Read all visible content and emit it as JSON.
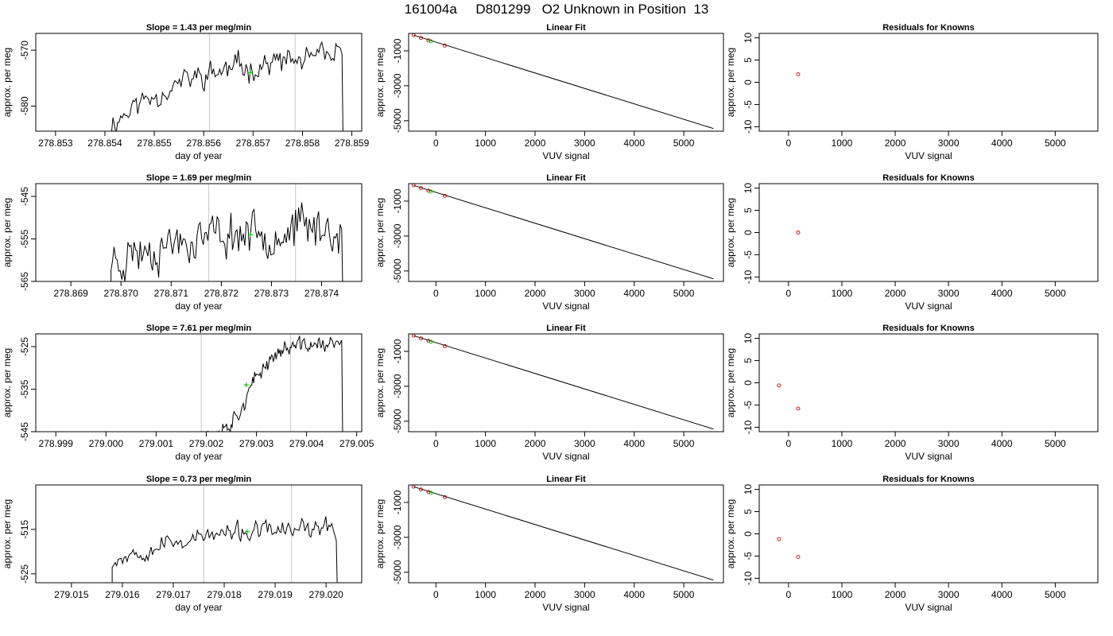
{
  "page": {
    "title": "161004a     D801299   O2 Unknown in Position  13"
  },
  "style": {
    "trace_color": "#000000",
    "marker_color": "#00cc00",
    "vline_color": "#c8c8c8",
    "point_color": "#cc0000"
  },
  "chart_data": [
    {
      "type": "line",
      "row": 0,
      "panel": "time-series",
      "title": "Slope =  1.43  per meg/min",
      "xlabel": "day of year",
      "ylabel": "approx. per meg",
      "xlim": [
        278.8526,
        278.8592
      ],
      "ylim": [
        -584.5,
        -567.0
      ],
      "xticks": [
        "278.853",
        "278.854",
        "278.855",
        "278.856",
        "278.857",
        "278.858",
        "278.859"
      ],
      "yticks": [
        "-570",
        "-580"
      ],
      "vlines": [
        278.85612,
        278.85785
      ],
      "marker": {
        "x": 278.85694,
        "y": -574.0
      },
      "trace": {
        "x_start": 278.8541,
        "x_end": 278.8588,
        "y_start": -583.5,
        "y_end": -570.8,
        "noise": 2.2,
        "end_y": -585.0,
        "seed": 11
      }
    },
    {
      "type": "line",
      "row": 0,
      "panel": "linear-fit",
      "title": "Linear Fit",
      "xlabel": "VUV signal",
      "ylabel": "approx. per meg",
      "xlim": [
        -550,
        5800
      ],
      "ylim": [
        -5600,
        0
      ],
      "xticks": [
        "0",
        "1000",
        "2000",
        "3000",
        "4000",
        "5000"
      ],
      "yticks": [
        "-1000",
        "-3000",
        "-5000"
      ],
      "line": {
        "x": [
          -450,
          5600
        ],
        "y": [
          -100,
          -5450
        ]
      },
      "known_points": [
        {
          "x": -450,
          "y": -100
        },
        {
          "x": -300,
          "y": -260
        },
        {
          "x": -150,
          "y": -400
        },
        {
          "x": 180,
          "y": -700
        }
      ],
      "unknown_points": [
        {
          "x": -100,
          "y": -450
        }
      ]
    },
    {
      "type": "scatter",
      "row": 0,
      "panel": "residuals",
      "title": "Residuals for Knowns",
      "xlabel": "VUV signal",
      "ylabel": "approx. per meg",
      "xlim": [
        -550,
        5800
      ],
      "ylim": [
        -11,
        11
      ],
      "xticks": [
        "0",
        "1000",
        "2000",
        "3000",
        "4000",
        "5000"
      ],
      "yticks": [
        "-10",
        "-5",
        "0",
        "5",
        "10"
      ],
      "points": [
        {
          "x": 180,
          "y": 1.8
        }
      ]
    },
    {
      "type": "line",
      "row": 1,
      "panel": "time-series",
      "title": "Slope =  1.69  per meg/min",
      "xlabel": "day of year",
      "ylabel": "approx. per meg",
      "xlim": [
        278.8683,
        278.8748
      ],
      "ylim": [
        -565.0,
        -542.0
      ],
      "xticks": [
        "278.869",
        "278.870",
        "278.871",
        "278.872",
        "278.873",
        "278.874"
      ],
      "yticks": [
        "-545",
        "-555",
        "-565"
      ],
      "vlines": [
        278.87175,
        278.87348
      ],
      "marker": {
        "x": 278.87258,
        "y": -554.0
      },
      "trace": {
        "x_start": 278.8698,
        "x_end": 278.8744,
        "y_start": -560.0,
        "y_end": -552.0,
        "noise": 5.0,
        "end_y": -566.0,
        "seed": 23
      }
    },
    {
      "type": "line",
      "row": 1,
      "panel": "linear-fit",
      "title": "Linear Fit",
      "xlabel": "VUV signal",
      "ylabel": "approx. per meg",
      "xlim": [
        -550,
        5800
      ],
      "ylim": [
        -5600,
        0
      ],
      "xticks": [
        "0",
        "1000",
        "2000",
        "3000",
        "4000",
        "5000"
      ],
      "yticks": [
        "-1000",
        "-3000",
        "-5000"
      ],
      "line": {
        "x": [
          -450,
          5600
        ],
        "y": [
          -100,
          -5450
        ]
      },
      "known_points": [
        {
          "x": -450,
          "y": -100
        },
        {
          "x": -300,
          "y": -260
        },
        {
          "x": -150,
          "y": -400
        },
        {
          "x": 180,
          "y": -700
        }
      ],
      "unknown_points": [
        {
          "x": -100,
          "y": -450
        }
      ]
    },
    {
      "type": "scatter",
      "row": 1,
      "panel": "residuals",
      "title": "Residuals for Knowns",
      "xlabel": "VUV signal",
      "ylabel": "approx. per meg",
      "xlim": [
        -550,
        5800
      ],
      "ylim": [
        -11,
        11
      ],
      "xticks": [
        "0",
        "1000",
        "2000",
        "3000",
        "4000",
        "5000"
      ],
      "yticks": [
        "-10",
        "-5",
        "0",
        "5",
        "10"
      ],
      "points": [
        {
          "x": 180,
          "y": 0.0
        }
      ]
    },
    {
      "type": "line",
      "row": 2,
      "panel": "time-series",
      "title": "Slope =  7.61  per meg/min",
      "xlabel": "day of year",
      "ylabel": "approx. per meg",
      "xlim": [
        278.9986,
        279.0051
      ],
      "ylim": [
        -545.0,
        -522.0
      ],
      "xticks": [
        "278.999",
        "279.000",
        "279.001",
        "279.002",
        "279.003",
        "279.004",
        "279.005"
      ],
      "yticks": [
        "-525",
        "-535",
        "-545"
      ],
      "vlines": [
        279.0019,
        279.00368
      ],
      "marker": {
        "x": 279.0028,
        "y": -534.0
      },
      "trace": {
        "x_start": 279.0019,
        "x_end": 279.0047,
        "y_start": -546.0,
        "y_end": -524.5,
        "noise": 1.8,
        "end_y": -546.0,
        "seed": 37,
        "shape": "sigmoid"
      }
    },
    {
      "type": "line",
      "row": 2,
      "panel": "linear-fit",
      "title": "Linear Fit",
      "xlabel": "VUV signal",
      "ylabel": "approx. per meg",
      "xlim": [
        -550,
        5800
      ],
      "ylim": [
        -5600,
        0
      ],
      "xticks": [
        "0",
        "1000",
        "2000",
        "3000",
        "4000",
        "5000"
      ],
      "yticks": [
        "-1000",
        "-3000",
        "-5000"
      ],
      "line": {
        "x": [
          -450,
          5600
        ],
        "y": [
          -100,
          -5450
        ]
      },
      "known_points": [
        {
          "x": -450,
          "y": -100
        },
        {
          "x": -300,
          "y": -260
        },
        {
          "x": -150,
          "y": -400
        },
        {
          "x": 180,
          "y": -700
        }
      ],
      "unknown_points": [
        {
          "x": -100,
          "y": -450
        }
      ]
    },
    {
      "type": "scatter",
      "row": 2,
      "panel": "residuals",
      "title": "Residuals for Knowns",
      "xlabel": "VUV signal",
      "ylabel": "approx. per meg",
      "xlim": [
        -550,
        5800
      ],
      "ylim": [
        -11,
        11
      ],
      "xticks": [
        "0",
        "1000",
        "2000",
        "3000",
        "4000",
        "5000"
      ],
      "yticks": [
        "-10",
        "-5",
        "0",
        "5",
        "10"
      ],
      "points": [
        {
          "x": -180,
          "y": -0.6
        },
        {
          "x": 180,
          "y": -5.8
        }
      ]
    },
    {
      "type": "line",
      "row": 3,
      "panel": "time-series",
      "title": "Slope =  0.73  per meg/min",
      "xlabel": "day of year",
      "ylabel": "approx. per meg",
      "xlim": [
        279.0143,
        279.0207
      ],
      "ylim": [
        -527.0,
        -505.0
      ],
      "xticks": [
        "279.015",
        "279.016",
        "279.017",
        "279.018",
        "279.019",
        "279.020"
      ],
      "yticks": [
        "-515",
        "-525"
      ],
      "vlines": [
        279.0176,
        279.01932
      ],
      "marker": {
        "x": 279.01845,
        "y": -515.5
      },
      "trace": {
        "x_start": 279.0158,
        "x_end": 279.0202,
        "y_start": -522.0,
        "y_end": -514.5,
        "noise": 2.0,
        "end_y": -528.0,
        "seed": 53
      }
    },
    {
      "type": "line",
      "row": 3,
      "panel": "linear-fit",
      "title": "Linear Fit",
      "xlabel": "VUV signal",
      "ylabel": "approx. per meg",
      "xlim": [
        -550,
        5800
      ],
      "ylim": [
        -5600,
        0
      ],
      "xticks": [
        "0",
        "1000",
        "2000",
        "3000",
        "4000",
        "5000"
      ],
      "yticks": [
        "-1000",
        "-3000",
        "-5000"
      ],
      "line": {
        "x": [
          -450,
          5600
        ],
        "y": [
          -100,
          -5450
        ]
      },
      "known_points": [
        {
          "x": -450,
          "y": -100
        },
        {
          "x": -300,
          "y": -260
        },
        {
          "x": -150,
          "y": -400
        },
        {
          "x": 180,
          "y": -700
        }
      ],
      "unknown_points": [
        {
          "x": -100,
          "y": -450
        }
      ]
    },
    {
      "type": "scatter",
      "row": 3,
      "panel": "residuals",
      "title": "Residuals for Knowns",
      "xlabel": "VUV signal",
      "ylabel": "approx. per meg",
      "xlim": [
        -550,
        5800
      ],
      "ylim": [
        -11,
        11
      ],
      "xticks": [
        "0",
        "1000",
        "2000",
        "3000",
        "4000",
        "5000"
      ],
      "yticks": [
        "-10",
        "-5",
        "0",
        "5",
        "10"
      ],
      "points": [
        {
          "x": -180,
          "y": -1.2
        },
        {
          "x": 180,
          "y": -5.2
        }
      ]
    }
  ]
}
